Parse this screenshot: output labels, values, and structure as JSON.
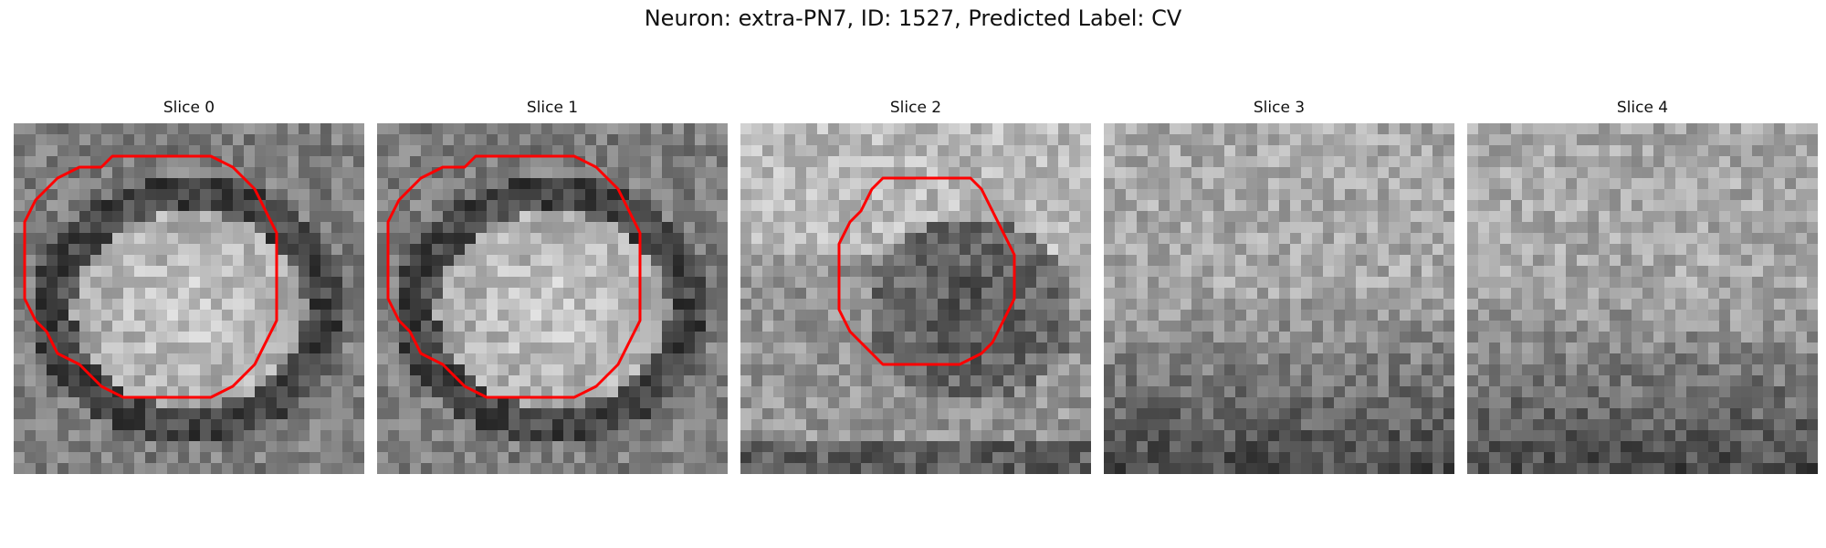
{
  "figure": {
    "title": "Neuron: extra-PN7, ID: 1527, Predicted Label: CV"
  },
  "slices": [
    {
      "title": "Slice 0",
      "contour": "ring"
    },
    {
      "title": "Slice 1",
      "contour": "ring"
    },
    {
      "title": "Slice 2",
      "contour": "ring"
    },
    {
      "title": "Slice 3",
      "contour": "none"
    },
    {
      "title": "Slice 4",
      "contour": "none"
    }
  ],
  "colors": {
    "background": "#ffffff",
    "contour": "#ff0000",
    "colormap": "grayscale"
  }
}
